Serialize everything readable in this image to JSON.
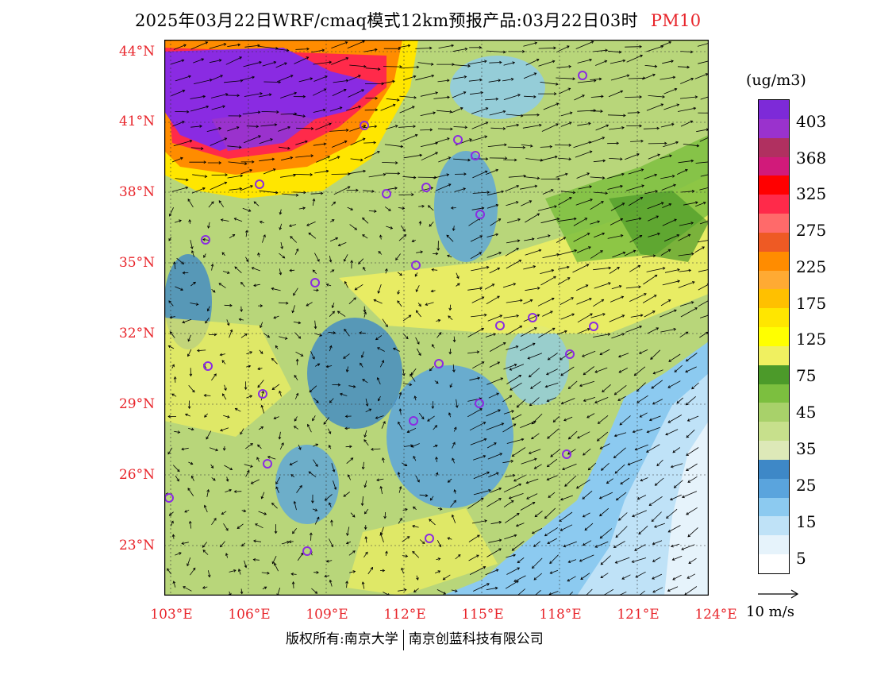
{
  "header": {
    "title": "2025年03月22日WRF/cmaq模式12km预报产品:03月22日03时",
    "pollutant": "PM10"
  },
  "axes": {
    "lat_labels": [
      "44°N",
      "41°N",
      "38°N",
      "35°N",
      "32°N",
      "29°N",
      "26°N",
      "23°N"
    ],
    "lon_labels": [
      "103°E",
      "106°E",
      "109°E",
      "112°E",
      "115°E",
      "118°E",
      "121°E",
      "124°E"
    ]
  },
  "legend": {
    "unit": "(ug/m3)",
    "labels": [
      "403",
      "368",
      "325",
      "275",
      "225",
      "175",
      "125",
      "75",
      "45",
      "35",
      "25",
      "15",
      "5"
    ],
    "colors": [
      "#7d2ad8",
      "#9a32cd",
      "#b03060",
      "#d11a7a",
      "#ff0000",
      "#ff2a4a",
      "#ff6a6a",
      "#ee5a24",
      "#ff8c00",
      "#ffaa33",
      "#ffc000",
      "#ffe600",
      "#ffff00",
      "#f0f060",
      "#4c9a2a",
      "#7cbf3f",
      "#a8d16a",
      "#c7e08c",
      "#dde9b8",
      "#3e88c7",
      "#5aa4dd",
      "#8ccaf0",
      "#bfe2f7",
      "#e6f3fb",
      "#ffffff"
    ]
  },
  "wind_reference": {
    "label": "10 m/s"
  },
  "footer": {
    "left": "版权所有:南京大学",
    "right": "南京创蓝科技有限公司"
  },
  "colors": {
    "accent": "#e8252b",
    "purple_station": "#8b2be2"
  }
}
